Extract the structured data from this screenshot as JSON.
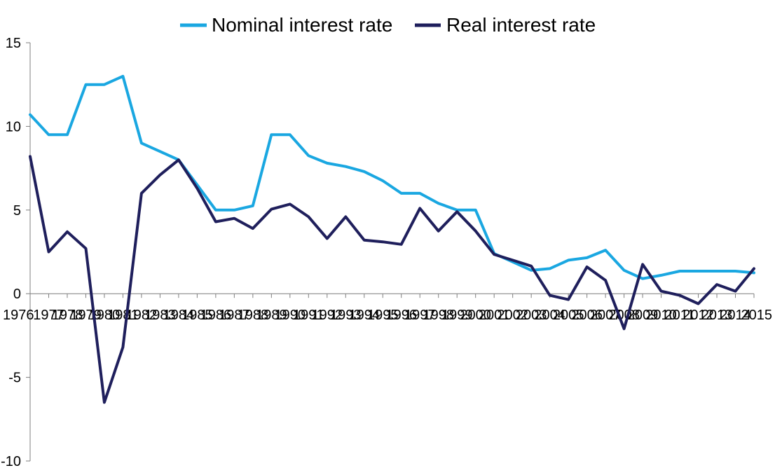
{
  "chart_data": {
    "type": "line",
    "title": "",
    "xlabel": "",
    "ylabel": "",
    "x": [
      "1976",
      "1977",
      "1978",
      "1979",
      "1980",
      "1981",
      "1982",
      "1983",
      "1984",
      "1985",
      "1986",
      "1987",
      "1988",
      "1989",
      "1990",
      "1991",
      "1992",
      "1993",
      "1994",
      "1995",
      "1996",
      "1997",
      "1998",
      "1999",
      "2000",
      "2001",
      "2002",
      "2003",
      "2004",
      "2005",
      "2006",
      "2007",
      "2008",
      "2009",
      "2010",
      "2011",
      "2012",
      "2013",
      "2014",
      "2015"
    ],
    "ylim": [
      -10,
      15
    ],
    "yticks": [
      15,
      10,
      5,
      0,
      -5,
      -10
    ],
    "grid": false,
    "legend_position": "top-center",
    "series": [
      {
        "name": "Nominal interest rate",
        "color": "#1aa7e1",
        "values": [
          10.7,
          9.5,
          9.5,
          12.5,
          12.5,
          13.0,
          9.0,
          8.5,
          8.0,
          6.5,
          5.0,
          5.0,
          5.25,
          9.5,
          9.5,
          8.25,
          7.8,
          7.6,
          7.3,
          6.75,
          6.0,
          6.0,
          5.4,
          5.0,
          5.0,
          2.4,
          1.9,
          1.4,
          1.5,
          2.0,
          2.15,
          2.6,
          1.4,
          0.9,
          1.1,
          1.35,
          1.35,
          1.35,
          1.35,
          1.25
        ]
      },
      {
        "name": "Real interest rate",
        "color": "#1f1f5c",
        "values": [
          8.2,
          2.5,
          3.7,
          2.7,
          -6.5,
          -3.2,
          6.0,
          7.1,
          8.0,
          6.3,
          4.3,
          4.5,
          3.9,
          5.05,
          5.35,
          4.6,
          3.3,
          4.6,
          3.2,
          3.1,
          2.95,
          5.1,
          3.75,
          4.9,
          3.75,
          2.35,
          2.0,
          1.65,
          -0.1,
          -0.35,
          1.6,
          0.8,
          -2.1,
          1.75,
          0.15,
          -0.1,
          -0.6,
          0.55,
          0.15,
          1.5
        ]
      }
    ]
  }
}
